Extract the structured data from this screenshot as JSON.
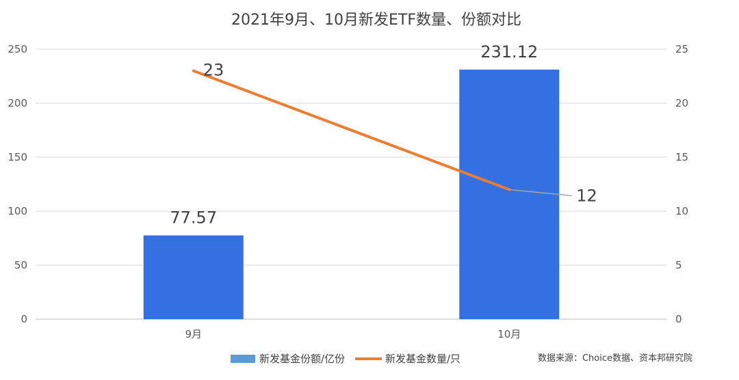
{
  "chart_data": {
    "type": "bar",
    "title": "2021年9月、10月新发ETF数量、份额对比",
    "categories": [
      "9月",
      "10月"
    ],
    "y_left": {
      "min": 0,
      "max": 250,
      "ticks": [
        "0",
        "50",
        "100",
        "150",
        "200",
        "250"
      ]
    },
    "y_right": {
      "min": 0,
      "max": 25,
      "ticks": [
        "0",
        "5",
        "10",
        "15",
        "20",
        "25"
      ]
    },
    "grid": true,
    "legend_position": "bottom",
    "series": [
      {
        "name": "新发基金份额/亿份",
        "type": "bar",
        "axis": "left",
        "color": "#3570E3",
        "values": [
          77.57,
          231.12
        ],
        "labels": [
          "77.57",
          "231.12"
        ]
      },
      {
        "name": "新发基金数量/只",
        "type": "line",
        "axis": "right",
        "color": "#ED7D31",
        "values": [
          23,
          12
        ],
        "labels": [
          "23",
          "12"
        ]
      }
    ],
    "source": "数据来源：Choice数据、资本邦研究院"
  }
}
